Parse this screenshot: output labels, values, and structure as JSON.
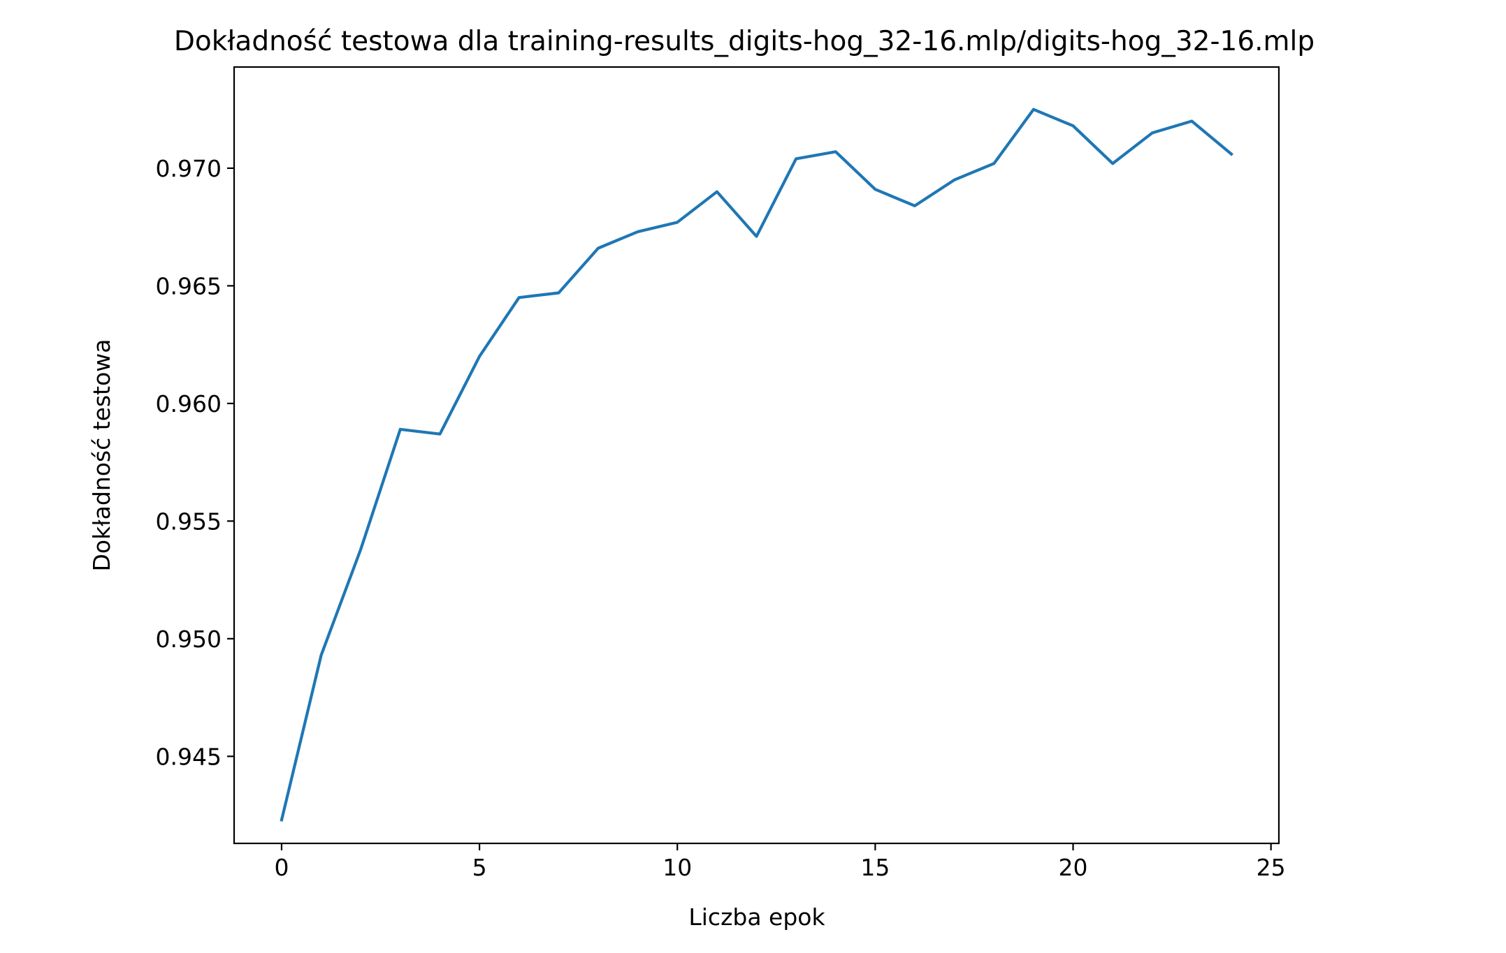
{
  "chart_data": {
    "type": "line",
    "title": "Dokładność testowa dla training-results_digits-hog_32-16.mlp/digits-hog_32-16.mlp",
    "xlabel": "Liczba epok",
    "ylabel": "Dokładność testowa",
    "xlim": [
      -1.2,
      25.2
    ],
    "ylim": [
      0.9413,
      0.9743
    ],
    "x_ticks": [
      0,
      5,
      10,
      15,
      20,
      25
    ],
    "x_tick_labels": [
      "0",
      "5",
      "10",
      "15",
      "20",
      "25"
    ],
    "y_ticks": [
      0.945,
      0.95,
      0.955,
      0.96,
      0.965,
      0.97
    ],
    "y_tick_labels": [
      "0.945",
      "0.950",
      "0.955",
      "0.960",
      "0.965",
      "0.970"
    ],
    "grid": false,
    "color": "#1f77b4",
    "x": [
      0,
      1,
      2,
      3,
      4,
      5,
      6,
      7,
      8,
      9,
      10,
      11,
      12,
      13,
      14,
      15,
      16,
      17,
      18,
      19,
      20,
      21,
      22,
      23,
      24
    ],
    "series": [
      {
        "values": [
          0.9423,
          0.9493,
          0.9538,
          0.9589,
          0.9587,
          0.962,
          0.9645,
          0.9647,
          0.9666,
          0.9673,
          0.9677,
          0.969,
          0.9671,
          0.9704,
          0.9707,
          0.9691,
          0.9684,
          0.9695,
          0.9702,
          0.9725,
          0.9718,
          0.9702,
          0.9715,
          0.972,
          0.9706
        ]
      }
    ]
  }
}
